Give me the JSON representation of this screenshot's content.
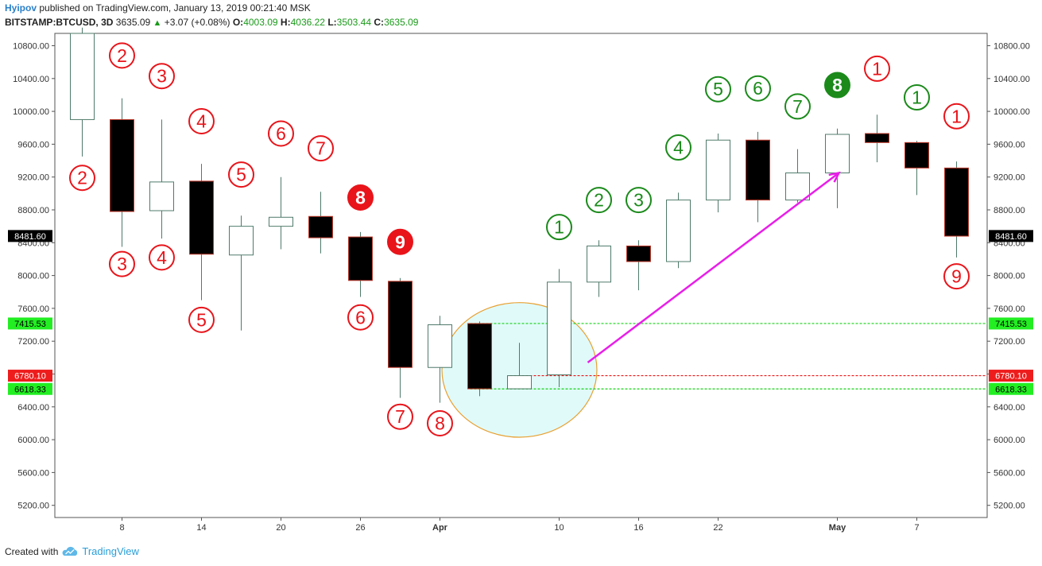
{
  "header": {
    "author": "Hyipov",
    "published": "published on TradingView.com, January 13, 2019 00:21:40 MSK",
    "symbol": "BITSTAMP:BTCUSD, 3D",
    "last": "3635.09",
    "change_arrow": "▲",
    "change": "+3.07 (+0.08%)",
    "o_label": "O:",
    "o_value": "4003.09",
    "h_label": "H:",
    "h_value": "4036.22",
    "l_label": "L:",
    "l_value": "3503.44",
    "c_label": "C:",
    "c_value": "3635.09"
  },
  "footer": {
    "created_with": "Created with",
    "brand": "TradingView",
    "logo_icon": "tradingview-cloud-icon"
  },
  "colors": {
    "bull_fill": "#ffffff",
    "bear_fill": "#000000",
    "candle_border": "#4f7a6a",
    "sell_count": "#e8141a",
    "buy_count": "#1b8a1b",
    "circle_fill": "#e0fafa",
    "circle_stroke": "#e8a030",
    "arrow": "#e81ee8",
    "green_level": "#17d017",
    "red_level": "#e81a1a",
    "price_tag": "#000000"
  },
  "chart_data": {
    "type": "candlestick",
    "ylim": [
      4950,
      11020
    ],
    "yticks": [
      5200,
      5600,
      6000,
      6400,
      6800,
      7200,
      7600,
      8000,
      8400,
      8800,
      9200,
      9600,
      10000,
      10400,
      10800
    ],
    "ytick_labels": [
      "5200.00",
      "5600.00",
      "6000.00",
      "6400.00",
      "6800.00",
      "7200.00",
      "7600.00",
      "8000.00",
      "8400.00",
      "8800.00",
      "9200.00",
      "9600.00",
      "10000.00",
      "10400.00",
      "10800.00"
    ],
    "xlabels": [
      {
        "i": 1,
        "label": "8"
      },
      {
        "i": 3,
        "label": "14"
      },
      {
        "i": 5,
        "label": "20"
      },
      {
        "i": 7,
        "label": "26"
      },
      {
        "i": 9,
        "label": "Apr"
      },
      {
        "i": 12,
        "label": "10"
      },
      {
        "i": 14,
        "label": "16"
      },
      {
        "i": 16,
        "label": "22"
      },
      {
        "i": 19,
        "label": "May"
      },
      {
        "i": 21,
        "label": "7"
      }
    ],
    "candles": [
      {
        "o": 9900,
        "h": 11100,
        "l": 9450,
        "c": 11100
      },
      {
        "o": 9900,
        "h": 10160,
        "l": 8350,
        "c": 8780
      },
      {
        "o": 8790,
        "h": 9900,
        "l": 8450,
        "c": 9140
      },
      {
        "o": 9150,
        "h": 9360,
        "l": 7700,
        "c": 8260
      },
      {
        "o": 8250,
        "h": 8730,
        "l": 7330,
        "c": 8600
      },
      {
        "o": 8600,
        "h": 9200,
        "l": 8320,
        "c": 8710
      },
      {
        "o": 8720,
        "h": 9020,
        "l": 8270,
        "c": 8460
      },
      {
        "o": 8470,
        "h": 8530,
        "l": 7740,
        "c": 7940
      },
      {
        "o": 7930,
        "h": 7970,
        "l": 6510,
        "c": 6880
      },
      {
        "o": 6880,
        "h": 7510,
        "l": 6450,
        "c": 7400
      },
      {
        "o": 7415,
        "h": 7440,
        "l": 6530,
        "c": 6620
      },
      {
        "o": 6620,
        "h": 7180,
        "l": 6620,
        "c": 6780
      },
      {
        "o": 6790,
        "h": 8080,
        "l": 6640,
        "c": 7920
      },
      {
        "o": 7920,
        "h": 8430,
        "l": 7740,
        "c": 8360
      },
      {
        "o": 8360,
        "h": 8430,
        "l": 7820,
        "c": 8170
      },
      {
        "o": 8170,
        "h": 9010,
        "l": 8090,
        "c": 8920
      },
      {
        "o": 8920,
        "h": 9730,
        "l": 8770,
        "c": 9650
      },
      {
        "o": 9650,
        "h": 9750,
        "l": 8650,
        "c": 8920
      },
      {
        "o": 8920,
        "h": 9540,
        "l": 8890,
        "c": 9250
      },
      {
        "o": 9250,
        "h": 9790,
        "l": 8820,
        "c": 9720
      },
      {
        "o": 9730,
        "h": 9960,
        "l": 9380,
        "c": 9620
      },
      {
        "o": 9620,
        "h": 9640,
        "l": 8980,
        "c": 9310
      },
      {
        "o": 9310,
        "h": 9390,
        "l": 8220,
        "c": 8480
      }
    ],
    "count_markers": [
      {
        "i": 0,
        "label": "2",
        "y": 9190,
        "color": "red",
        "filled": false
      },
      {
        "i": 1,
        "label": "2",
        "y": 10680,
        "color": "red",
        "filled": false
      },
      {
        "i": 1,
        "label": "3",
        "y": 8140,
        "color": "red",
        "filled": false
      },
      {
        "i": 2,
        "label": "3",
        "y": 10430,
        "color": "red",
        "filled": false
      },
      {
        "i": 2,
        "label": "4",
        "y": 8220,
        "color": "red",
        "filled": false
      },
      {
        "i": 3,
        "label": "4",
        "y": 9880,
        "color": "red",
        "filled": false
      },
      {
        "i": 3,
        "label": "5",
        "y": 7460,
        "color": "red",
        "filled": false
      },
      {
        "i": 4,
        "label": "5",
        "y": 9230,
        "color": "red",
        "filled": false
      },
      {
        "i": 5,
        "label": "6",
        "y": 9730,
        "color": "red",
        "filled": false
      },
      {
        "i": 6,
        "label": "7",
        "y": 9550,
        "color": "red",
        "filled": false
      },
      {
        "i": 7,
        "label": "8",
        "y": 8950,
        "color": "red",
        "filled": true
      },
      {
        "i": 7,
        "label": "6",
        "y": 7490,
        "color": "red",
        "filled": false
      },
      {
        "i": 8,
        "label": "9",
        "y": 8410,
        "color": "red",
        "filled": true
      },
      {
        "i": 8,
        "label": "7",
        "y": 6280,
        "color": "red",
        "filled": false
      },
      {
        "i": 9,
        "label": "8",
        "y": 6200,
        "color": "red",
        "filled": false
      },
      {
        "i": 12,
        "label": "1",
        "y": 8590,
        "color": "green",
        "filled": false
      },
      {
        "i": 13,
        "label": "2",
        "y": 8920,
        "color": "green",
        "filled": false
      },
      {
        "i": 14,
        "label": "3",
        "y": 8920,
        "color": "green",
        "filled": false
      },
      {
        "i": 15,
        "label": "4",
        "y": 9560,
        "color": "green",
        "filled": false
      },
      {
        "i": 16,
        "label": "5",
        "y": 10270,
        "color": "green",
        "filled": false
      },
      {
        "i": 17,
        "label": "6",
        "y": 10280,
        "color": "green",
        "filled": false
      },
      {
        "i": 18,
        "label": "7",
        "y": 10060,
        "color": "green",
        "filled": false
      },
      {
        "i": 19,
        "label": "8",
        "y": 10320,
        "color": "green",
        "filled": true
      },
      {
        "i": 20,
        "label": "1",
        "y": 10520,
        "color": "red",
        "filled": false
      },
      {
        "i": 21,
        "label": "1",
        "y": 10170,
        "color": "green",
        "filled": false
      },
      {
        "i": 22,
        "label": "1",
        "y": 9940,
        "color": "red",
        "filled": false
      },
      {
        "i": 22,
        "label": "9",
        "y": 7990,
        "color": "red",
        "filled": false
      }
    ],
    "levels": [
      {
        "value": 7415.53,
        "label": "7415.53",
        "color": "green",
        "from_i": 10
      },
      {
        "value": 6780.1,
        "label": "6780.10",
        "color": "red",
        "from_i": 11
      },
      {
        "value": 6618.33,
        "label": "6618.33",
        "color": "green",
        "from_i": 10
      }
    ],
    "last_price": {
      "value": 8481.6,
      "label": "8481.60"
    },
    "ellipse": {
      "center_i": 11,
      "center_y": 6850,
      "rx_bars": 1.95,
      "top_y": 7670,
      "bottom_y": 6030
    },
    "arrow": {
      "from_i": 12,
      "from_y": 6940,
      "to_i": 19,
      "to_y": 9250
    }
  }
}
